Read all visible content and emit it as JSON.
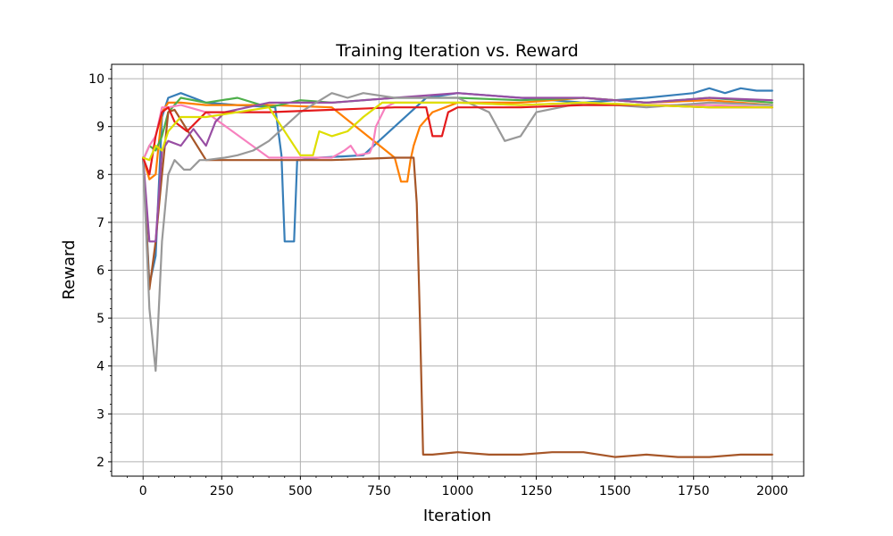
{
  "chart_data": {
    "type": "line",
    "title": "Training Iteration vs. Reward",
    "xlabel": "Iteration",
    "ylabel": "Reward",
    "xlim": [
      -100,
      2100
    ],
    "ylim": [
      1.7,
      10.3
    ],
    "grid": true,
    "x_ticks": [
      0,
      250,
      500,
      750,
      1000,
      1250,
      1500,
      1750,
      2000
    ],
    "y_ticks": [
      2,
      3,
      4,
      5,
      6,
      7,
      8,
      9,
      10
    ],
    "x_tick_labels": [
      "0",
      "250",
      "500",
      "750",
      "1000",
      "1250",
      "1500",
      "1750",
      "2000"
    ],
    "y_tick_labels": [
      "2",
      "3",
      "4",
      "5",
      "6",
      "7",
      "8",
      "9",
      "10"
    ],
    "series": [
      {
        "color": "#377eb8",
        "x": [
          0,
          20,
          40,
          60,
          80,
          120,
          200,
          300,
          420,
          440,
          450,
          480,
          490,
          500,
          560,
          700,
          900,
          1000,
          1200,
          1400,
          1600,
          1750,
          1800,
          1850,
          1900,
          1950,
          2000
        ],
        "y": [
          8.35,
          5.7,
          6.3,
          9.2,
          9.6,
          9.7,
          9.5,
          9.45,
          9.4,
          8.4,
          6.6,
          6.6,
          8.3,
          8.3,
          8.35,
          8.4,
          9.6,
          9.7,
          9.6,
          9.5,
          9.6,
          9.7,
          9.8,
          9.7,
          9.8,
          9.75,
          9.75
        ]
      },
      {
        "color": "#ff7f00",
        "x": [
          0,
          20,
          40,
          60,
          80,
          120,
          200,
          400,
          600,
          800,
          820,
          840,
          850,
          860,
          880,
          920,
          1000,
          1200,
          1400,
          1600,
          1800,
          2000
        ],
        "y": [
          8.35,
          7.9,
          8.0,
          9.3,
          9.5,
          9.5,
          9.45,
          9.45,
          9.4,
          8.35,
          7.85,
          7.85,
          8.3,
          8.6,
          9.0,
          9.3,
          9.5,
          9.5,
          9.6,
          9.5,
          9.55,
          9.45
        ]
      },
      {
        "color": "#4daf4a",
        "x": [
          0,
          20,
          40,
          60,
          80,
          120,
          200,
          300,
          400,
          500,
          600,
          800,
          1000,
          1200,
          1400,
          1600,
          1800,
          2000
        ],
        "y": [
          8.3,
          8.6,
          8.5,
          8.8,
          9.3,
          9.6,
          9.5,
          9.6,
          9.4,
          9.55,
          9.5,
          9.6,
          9.6,
          9.55,
          9.6,
          9.5,
          9.6,
          9.5
        ]
      },
      {
        "color": "#f781bf",
        "x": [
          0,
          20,
          40,
          60,
          80,
          120,
          200,
          400,
          600,
          640,
          660,
          680,
          720,
          730,
          740,
          770,
          800,
          1000,
          1200,
          1400,
          1600,
          1800,
          2000
        ],
        "y": [
          8.3,
          8.6,
          8.8,
          9.4,
          9.4,
          9.45,
          9.3,
          8.35,
          8.35,
          8.5,
          8.6,
          8.4,
          8.45,
          8.6,
          9.0,
          9.4,
          9.5,
          9.5,
          9.45,
          9.5,
          9.45,
          9.45,
          9.4
        ]
      },
      {
        "color": "#a65628",
        "x": [
          0,
          20,
          40,
          60,
          80,
          100,
          200,
          400,
          600,
          800,
          860,
          870,
          880,
          890,
          920,
          1000,
          1100,
          1200,
          1300,
          1400,
          1500,
          1600,
          1700,
          1800,
          1900,
          2000
        ],
        "y": [
          8.35,
          5.6,
          6.6,
          8.0,
          9.3,
          9.35,
          8.3,
          8.3,
          8.3,
          8.35,
          8.35,
          7.4,
          5.0,
          2.15,
          2.15,
          2.2,
          2.15,
          2.15,
          2.2,
          2.2,
          2.1,
          2.15,
          2.1,
          2.1,
          2.15,
          2.15
        ]
      },
      {
        "color": "#984ea3",
        "x": [
          0,
          20,
          40,
          60,
          80,
          120,
          160,
          200,
          230,
          260,
          400,
          600,
          800,
          1000,
          1200,
          1400,
          1600,
          1800,
          2000
        ],
        "y": [
          8.35,
          6.6,
          6.6,
          8.5,
          8.7,
          8.6,
          8.95,
          8.6,
          9.1,
          9.3,
          9.5,
          9.5,
          9.6,
          9.7,
          9.6,
          9.6,
          9.5,
          9.6,
          9.55
        ]
      },
      {
        "color": "#999999",
        "x": [
          0,
          20,
          40,
          45,
          60,
          80,
          100,
          130,
          150,
          180,
          200,
          260,
          300,
          350,
          400,
          450,
          500,
          550,
          600,
          650,
          700,
          800,
          1000,
          1100,
          1150,
          1200,
          1250,
          1400,
          1600,
          1800,
          2000
        ],
        "y": [
          8.3,
          5.2,
          3.9,
          4.5,
          6.6,
          8.0,
          8.3,
          8.1,
          8.1,
          8.3,
          8.3,
          8.35,
          8.4,
          8.5,
          8.7,
          9.0,
          9.3,
          9.5,
          9.7,
          9.6,
          9.7,
          9.6,
          9.6,
          9.3,
          8.7,
          8.8,
          9.3,
          9.5,
          9.4,
          9.5,
          9.45
        ]
      },
      {
        "color": "#e41a1c",
        "x": [
          0,
          20,
          40,
          60,
          80,
          100,
          140,
          200,
          300,
          400,
          600,
          800,
          900,
          920,
          950,
          970,
          1000,
          1200,
          1400,
          1600,
          1800,
          2000
        ],
        "y": [
          8.35,
          8.0,
          8.8,
          9.3,
          9.4,
          9.1,
          8.9,
          9.3,
          9.3,
          9.3,
          9.35,
          9.4,
          9.4,
          8.8,
          8.8,
          9.3,
          9.4,
          9.4,
          9.45,
          9.45,
          9.4,
          9.4
        ]
      },
      {
        "color": "#dede00",
        "x": [
          0,
          20,
          40,
          60,
          80,
          120,
          200,
          300,
          400,
          500,
          540,
          560,
          600,
          650,
          700,
          760,
          800,
          1000,
          1200,
          1400,
          1600,
          1800,
          2000
        ],
        "y": [
          8.35,
          8.3,
          8.6,
          8.5,
          8.9,
          9.2,
          9.2,
          9.3,
          9.4,
          8.4,
          8.4,
          8.9,
          8.8,
          8.9,
          9.2,
          9.5,
          9.5,
          9.5,
          9.45,
          9.5,
          9.45,
          9.4,
          9.4
        ]
      }
    ]
  }
}
